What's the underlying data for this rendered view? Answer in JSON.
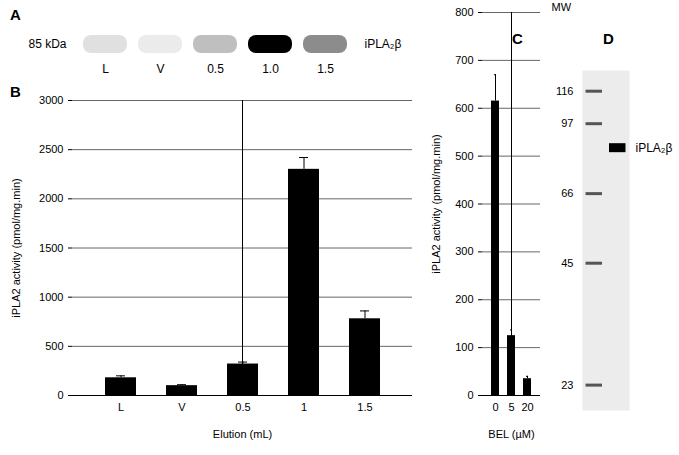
{
  "chart_data": [
    {
      "type": "blot",
      "title": "A",
      "ylabel": "85 kDa",
      "annotation": "iPLA₂β",
      "categories": [
        "L",
        "V",
        "0.5",
        "1.0",
        "1.5"
      ],
      "values": [
        0.12,
        0.08,
        0.25,
        1.0,
        0.45
      ],
      "color": "#000000"
    },
    {
      "type": "bar",
      "title": "B",
      "ylabel": "iPLA2 activity (pmol/mg.min)",
      "xlabel": "Elution (mL)",
      "categories": [
        "L",
        "V",
        "0.5",
        "1",
        "1.5"
      ],
      "values": [
        180,
        100,
        320,
        2300,
        780
      ],
      "errors": [
        20,
        10,
        20,
        120,
        80
      ],
      "color": "#000000",
      "ylim": [
        0,
        3000
      ],
      "yticks": [
        0,
        500,
        1000,
        1500,
        2000,
        2500,
        3000
      ],
      "grid": true
    },
    {
      "type": "bar",
      "title": "C",
      "ylabel": "iPLA2 activity (pmol/mg.min)",
      "xlabel": "BEL (µM)",
      "categories": [
        "0",
        "5",
        "20"
      ],
      "values": [
        615,
        125,
        35
      ],
      "errors": [
        55,
        12,
        5
      ],
      "color": "#000000",
      "ylim": [
        0,
        800
      ],
      "yticks": [
        0,
        100,
        200,
        300,
        400,
        500,
        600,
        700,
        800
      ],
      "grid": true
    },
    {
      "type": "gel",
      "title": "D",
      "ylabel": "MW",
      "annotation": "iPLA₂β",
      "ladder": [
        116,
        97,
        66,
        45,
        23
      ],
      "values": [
        85
      ],
      "log": "y",
      "ylim": [
        20,
        130
      ],
      "yticks": [
        116,
        97,
        66,
        45,
        23
      ],
      "color": "#000000"
    }
  ]
}
